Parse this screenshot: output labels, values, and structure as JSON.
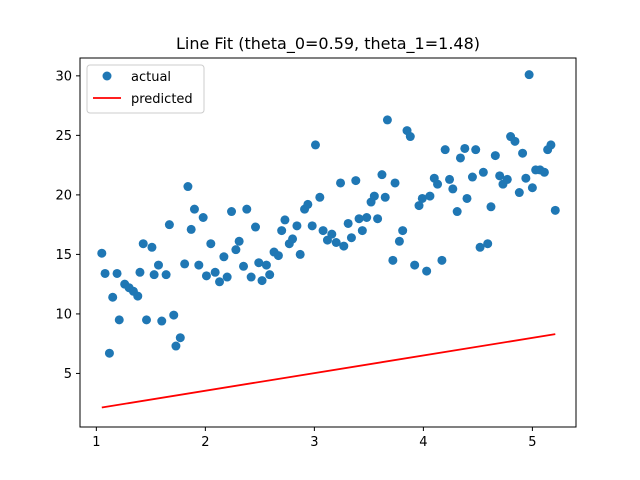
{
  "chart_data": {
    "type": "scatter",
    "title": "Line Fit (theta_0=0.59, theta_1=1.48)",
    "xlabel": "",
    "ylabel": "",
    "xlim": [
      0.85,
      5.4
    ],
    "ylim": [
      0.5,
      31.5
    ],
    "xticks": [
      1,
      2,
      3,
      4,
      5
    ],
    "yticks": [
      5,
      10,
      15,
      20,
      25,
      30
    ],
    "grid": false,
    "legend_position": "upper-left",
    "theta_0": 0.59,
    "theta_1": 1.48,
    "series": [
      {
        "name": "actual",
        "kind": "scatter",
        "color": "#1f77b4",
        "points": [
          [
            1.05,
            15.1
          ],
          [
            1.08,
            13.4
          ],
          [
            1.12,
            6.7
          ],
          [
            1.15,
            11.4
          ],
          [
            1.19,
            13.4
          ],
          [
            1.21,
            9.5
          ],
          [
            1.26,
            12.5
          ],
          [
            1.3,
            12.2
          ],
          [
            1.34,
            11.9
          ],
          [
            1.38,
            11.5
          ],
          [
            1.4,
            13.5
          ],
          [
            1.43,
            15.9
          ],
          [
            1.46,
            9.5
          ],
          [
            1.51,
            15.6
          ],
          [
            1.53,
            13.3
          ],
          [
            1.57,
            14.1
          ],
          [
            1.6,
            9.4
          ],
          [
            1.64,
            13.3
          ],
          [
            1.67,
            17.5
          ],
          [
            1.71,
            9.9
          ],
          [
            1.73,
            7.3
          ],
          [
            1.77,
            8.0
          ],
          [
            1.81,
            14.2
          ],
          [
            1.84,
            20.7
          ],
          [
            1.87,
            17.1
          ],
          [
            1.9,
            18.8
          ],
          [
            1.94,
            14.1
          ],
          [
            1.98,
            18.1
          ],
          [
            2.01,
            13.2
          ],
          [
            2.05,
            15.9
          ],
          [
            2.09,
            13.5
          ],
          [
            2.13,
            12.7
          ],
          [
            2.17,
            14.8
          ],
          [
            2.2,
            13.1
          ],
          [
            2.24,
            18.6
          ],
          [
            2.28,
            15.4
          ],
          [
            2.31,
            16.1
          ],
          [
            2.35,
            14.0
          ],
          [
            2.38,
            18.8
          ],
          [
            2.42,
            13.1
          ],
          [
            2.46,
            17.3
          ],
          [
            2.49,
            14.3
          ],
          [
            2.52,
            12.8
          ],
          [
            2.56,
            14.1
          ],
          [
            2.59,
            13.3
          ],
          [
            2.63,
            15.2
          ],
          [
            2.67,
            14.9
          ],
          [
            2.7,
            17.0
          ],
          [
            2.73,
            17.9
          ],
          [
            2.77,
            15.9
          ],
          [
            2.8,
            16.3
          ],
          [
            2.84,
            17.4
          ],
          [
            2.87,
            15.0
          ],
          [
            2.91,
            18.8
          ],
          [
            2.94,
            19.2
          ],
          [
            2.98,
            17.4
          ],
          [
            3.01,
            24.2
          ],
          [
            3.05,
            19.8
          ],
          [
            3.08,
            17.0
          ],
          [
            3.12,
            16.2
          ],
          [
            3.16,
            16.7
          ],
          [
            3.2,
            16.0
          ],
          [
            3.24,
            21.0
          ],
          [
            3.27,
            15.7
          ],
          [
            3.31,
            17.6
          ],
          [
            3.34,
            16.4
          ],
          [
            3.38,
            21.2
          ],
          [
            3.41,
            18.0
          ],
          [
            3.44,
            17.0
          ],
          [
            3.48,
            18.1
          ],
          [
            3.52,
            19.4
          ],
          [
            3.55,
            19.9
          ],
          [
            3.58,
            18.0
          ],
          [
            3.62,
            21.7
          ],
          [
            3.65,
            19.8
          ],
          [
            3.67,
            26.3
          ],
          [
            3.72,
            14.5
          ],
          [
            3.74,
            21.0
          ],
          [
            3.78,
            16.1
          ],
          [
            3.81,
            17.0
          ],
          [
            3.85,
            25.4
          ],
          [
            3.88,
            24.9
          ],
          [
            3.92,
            14.1
          ],
          [
            3.96,
            19.1
          ],
          [
            3.99,
            19.7
          ],
          [
            4.03,
            13.6
          ],
          [
            4.06,
            19.9
          ],
          [
            4.1,
            21.4
          ],
          [
            4.13,
            20.9
          ],
          [
            4.17,
            14.5
          ],
          [
            4.2,
            23.8
          ],
          [
            4.24,
            21.3
          ],
          [
            4.27,
            20.5
          ],
          [
            4.31,
            18.6
          ],
          [
            4.34,
            23.1
          ],
          [
            4.38,
            23.9
          ],
          [
            4.4,
            19.7
          ],
          [
            4.45,
            21.5
          ],
          [
            4.48,
            23.8
          ],
          [
            4.52,
            15.6
          ],
          [
            4.55,
            21.9
          ],
          [
            4.59,
            15.9
          ],
          [
            4.62,
            19.0
          ],
          [
            4.66,
            23.3
          ],
          [
            4.7,
            21.6
          ],
          [
            4.73,
            20.9
          ],
          [
            4.77,
            21.3
          ],
          [
            4.8,
            24.9
          ],
          [
            4.84,
            24.5
          ],
          [
            4.88,
            20.2
          ],
          [
            4.91,
            23.5
          ],
          [
            4.94,
            21.4
          ],
          [
            4.97,
            30.1
          ],
          [
            5.0,
            20.6
          ],
          [
            5.03,
            22.1
          ],
          [
            5.07,
            22.1
          ],
          [
            5.11,
            21.9
          ],
          [
            5.14,
            23.8
          ],
          [
            5.17,
            24.2
          ],
          [
            5.21,
            18.7
          ]
        ]
      },
      {
        "name": "predicted",
        "kind": "line",
        "color": "#ff0000",
        "x": [
          1.05,
          5.21
        ],
        "y": [
          2.14,
          8.3
        ]
      }
    ]
  }
}
